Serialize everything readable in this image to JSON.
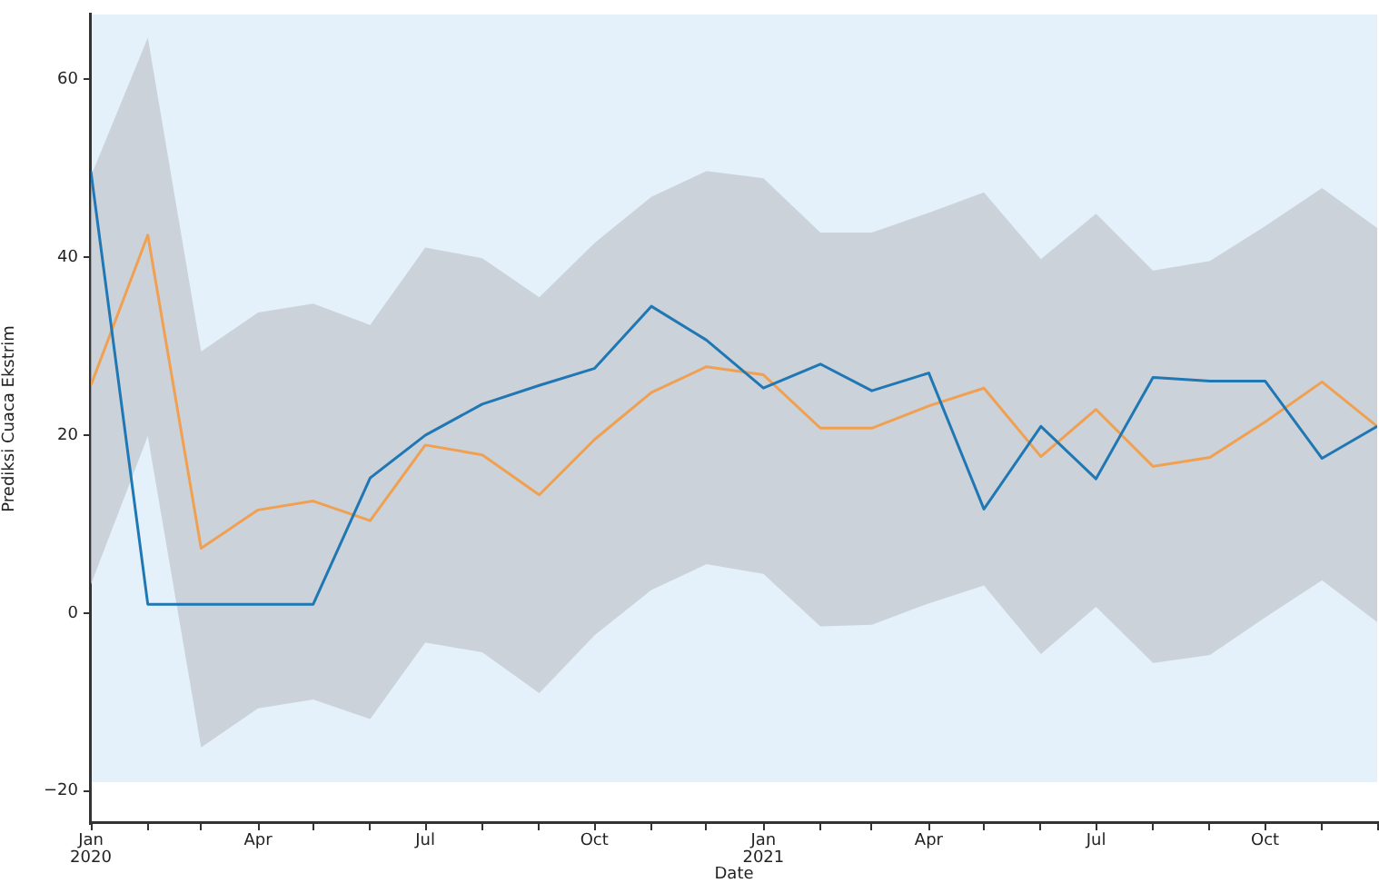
{
  "chart_data": {
    "type": "line",
    "xlabel": "Date",
    "ylabel": "Prediksi Cuaca Ekstrim",
    "x": [
      "2020-01",
      "2020-02",
      "2020-03",
      "2020-04",
      "2020-05",
      "2020-06",
      "2020-07",
      "2020-08",
      "2020-09",
      "2020-10",
      "2020-11",
      "2020-12",
      "2021-01",
      "2021-02",
      "2021-03",
      "2021-04",
      "2021-05",
      "2021-06",
      "2021-07",
      "2021-08",
      "2021-09",
      "2021-10",
      "2021-11",
      "2021-12"
    ],
    "series": [
      {
        "color": "#1f77b4",
        "values": [
          49.7,
          1,
          1,
          1,
          1,
          15.2,
          20,
          23.5,
          25.6,
          27.5,
          34.5,
          30.7,
          25.3,
          28,
          25,
          27,
          11.7,
          21,
          15.1,
          26.5,
          26.1,
          26.1,
          17.4,
          21
        ]
      },
      {
        "color": "#f0a050",
        "values": [
          25.6,
          42.5,
          7.3,
          11.6,
          12.6,
          10.4,
          18.9,
          17.8,
          13.3,
          19.5,
          24.8,
          27.7,
          26.8,
          20.8,
          20.8,
          23.3,
          25.3,
          17.6,
          22.9,
          16.5,
          17.5,
          21.5,
          26,
          21
        ],
        "lower": [
          3.2,
          19.9,
          -15.1,
          -10.7,
          -9.7,
          -11.9,
          -3.3,
          -4.4,
          -9,
          -2.5,
          2.6,
          5.5,
          4.4,
          -1.5,
          -1.3,
          1.1,
          3.1,
          -4.6,
          0.7,
          -5.6,
          -4.7,
          -0.5,
          3.7,
          -1
        ],
        "upper": [
          49.1,
          64.7,
          29.4,
          33.8,
          34.8,
          32.4,
          41.1,
          39.9,
          35.5,
          41.6,
          46.8,
          49.7,
          48.9,
          42.8,
          42.8,
          45,
          47.3,
          39.8,
          44.9,
          38.5,
          39.6,
          43.5,
          47.8,
          43.3
        ]
      }
    ],
    "xlim": [
      "2020-01",
      "2021-12"
    ],
    "xticks": [
      {
        "value": "2020-01",
        "label": "Jan\n2020"
      },
      {
        "value": "2020-02",
        "label": null
      },
      {
        "value": "2020-03",
        "label": null
      },
      {
        "value": "2020-04",
        "label": "Apr"
      },
      {
        "value": "2020-05",
        "label": null
      },
      {
        "value": "2020-06",
        "label": null
      },
      {
        "value": "2020-07",
        "label": "Jul"
      },
      {
        "value": "2020-08",
        "label": null
      },
      {
        "value": "2020-09",
        "label": null
      },
      {
        "value": "2020-10",
        "label": "Oct"
      },
      {
        "value": "2020-11",
        "label": null
      },
      {
        "value": "2020-12",
        "label": null
      },
      {
        "value": "2021-01",
        "label": "Jan\n2021"
      },
      {
        "value": "2021-02",
        "label": null
      },
      {
        "value": "2021-03",
        "label": null
      },
      {
        "value": "2021-04",
        "label": "Apr"
      },
      {
        "value": "2021-05",
        "label": null
      },
      {
        "value": "2021-06",
        "label": null
      },
      {
        "value": "2021-07",
        "label": "Jul"
      },
      {
        "value": "2021-08",
        "label": null
      },
      {
        "value": "2021-09",
        "label": null
      },
      {
        "value": "2021-10",
        "label": "Oct"
      },
      {
        "value": "2021-11",
        "label": null
      },
      {
        "value": "2021-12",
        "label": null
      }
    ],
    "ylim": [
      -23.6,
      67.3
    ],
    "yticks": [
      -20,
      0,
      20,
      40,
      60
    ],
    "bands": [
      {
        "axis": "y",
        "from": -19,
        "to": 67.3,
        "color": "#e4f0fa"
      }
    ],
    "grid": false,
    "legend": false,
    "marker": "none",
    "line_style": "solid"
  }
}
